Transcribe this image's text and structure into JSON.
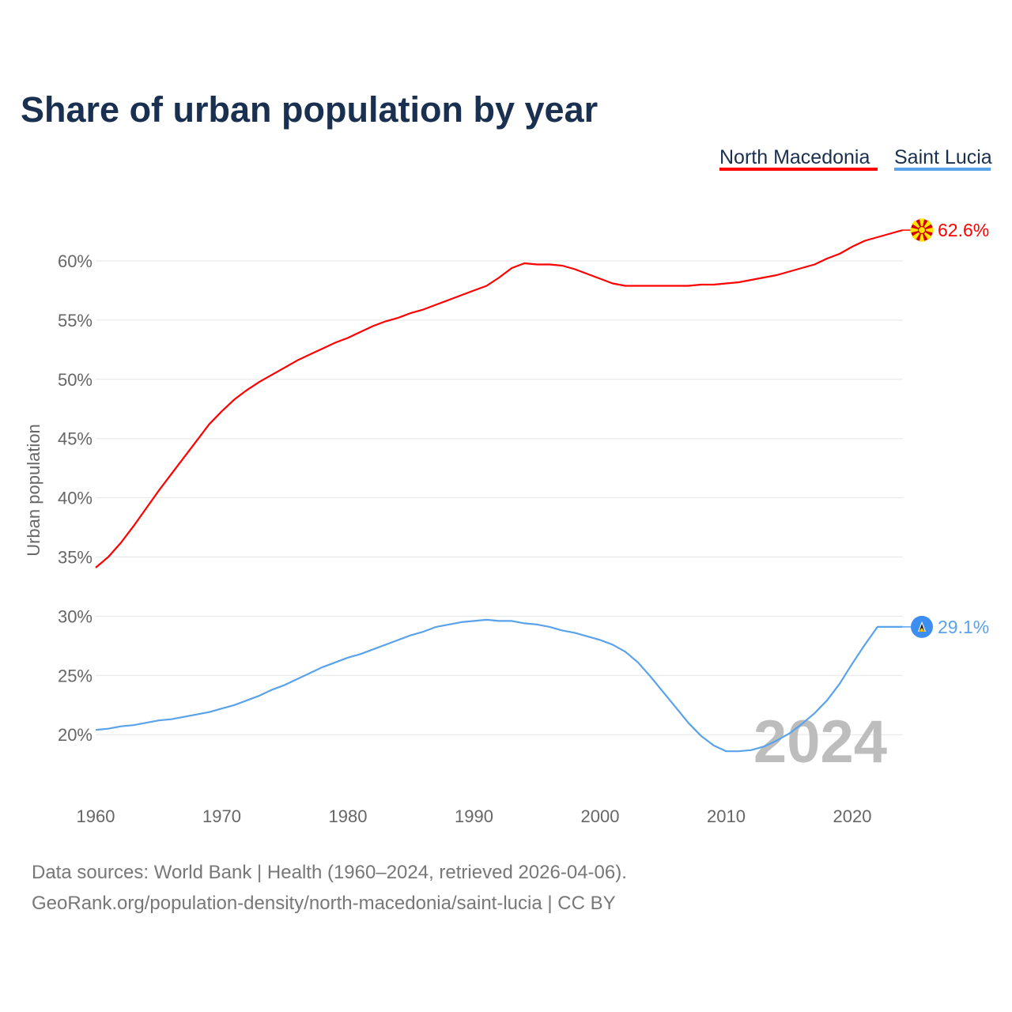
{
  "chart_data": {
    "type": "line",
    "title": "Share of urban population by year",
    "xlabel": "",
    "ylabel": "Urban population",
    "xlim": [
      1960,
      2024
    ],
    "ylim": [
      15,
      63
    ],
    "yticks": [
      20,
      25,
      30,
      35,
      40,
      45,
      50,
      55,
      60
    ],
    "ytick_labels": [
      "20%",
      "25%",
      "30%",
      "35%",
      "40%",
      "45%",
      "50%",
      "55%",
      "60%"
    ],
    "xticks": [
      1960,
      1970,
      1980,
      1990,
      2000,
      2010,
      2020
    ],
    "xtick_labels": [
      "1960",
      "1970",
      "1980",
      "1990",
      "2000",
      "2010",
      "2020"
    ],
    "grid": true,
    "legend_placement": "top-right",
    "watermark_year": "2024",
    "x": [
      1960,
      1961,
      1962,
      1963,
      1964,
      1965,
      1966,
      1967,
      1968,
      1969,
      1970,
      1971,
      1972,
      1973,
      1974,
      1975,
      1976,
      1977,
      1978,
      1979,
      1980,
      1981,
      1982,
      1983,
      1984,
      1985,
      1986,
      1987,
      1988,
      1989,
      1990,
      1991,
      1992,
      1993,
      1994,
      1995,
      1996,
      1997,
      1998,
      1999,
      2000,
      2001,
      2002,
      2003,
      2004,
      2005,
      2006,
      2007,
      2008,
      2009,
      2010,
      2011,
      2012,
      2013,
      2014,
      2015,
      2016,
      2017,
      2018,
      2019,
      2020,
      2021,
      2022,
      2023,
      2024
    ],
    "series": [
      {
        "name": "North Macedonia",
        "color": "#ff0000",
        "end_label": "62.6%",
        "flag": "north-macedonia-flag",
        "values": [
          34.1,
          35.0,
          36.2,
          37.6,
          39.1,
          40.6,
          42.0,
          43.4,
          44.8,
          46.2,
          47.3,
          48.3,
          49.1,
          49.8,
          50.4,
          51.0,
          51.6,
          52.1,
          52.6,
          53.1,
          53.5,
          54.0,
          54.5,
          54.9,
          55.2,
          55.6,
          55.9,
          56.3,
          56.7,
          57.1,
          57.5,
          57.9,
          58.6,
          59.4,
          59.8,
          59.7,
          59.7,
          59.6,
          59.3,
          58.9,
          58.5,
          58.1,
          57.9,
          57.9,
          57.9,
          57.9,
          57.9,
          57.9,
          58.0,
          58.0,
          58.1,
          58.2,
          58.4,
          58.6,
          58.8,
          59.1,
          59.4,
          59.7,
          60.2,
          60.6,
          61.2,
          61.7,
          62.0,
          62.3,
          62.6
        ]
      },
      {
        "name": "Saint Lucia",
        "color": "#5aa2ea",
        "end_label": "29.1%",
        "flag": "saint-lucia-flag",
        "values": [
          20.4,
          20.5,
          20.7,
          20.8,
          21.0,
          21.2,
          21.3,
          21.5,
          21.7,
          21.9,
          22.2,
          22.5,
          22.9,
          23.3,
          23.8,
          24.2,
          24.7,
          25.2,
          25.7,
          26.1,
          26.5,
          26.8,
          27.2,
          27.6,
          28.0,
          28.4,
          28.7,
          29.1,
          29.3,
          29.5,
          29.6,
          29.7,
          29.6,
          29.6,
          29.4,
          29.3,
          29.1,
          28.8,
          28.6,
          28.3,
          28.0,
          27.6,
          27.0,
          26.1,
          24.9,
          23.6,
          22.3,
          21.0,
          19.9,
          19.1,
          18.6,
          18.6,
          18.7,
          19.0,
          19.5,
          20.1,
          20.9,
          21.8,
          22.9,
          24.3,
          26.0,
          27.6,
          29.1,
          29.1,
          29.1
        ]
      }
    ]
  },
  "footer": {
    "line1": "Data sources: World Bank | Health (1960–2024, retrieved 2026-04-06).",
    "line2": "GeoRank.org/population-density/north-macedonia/saint-lucia | CC BY"
  }
}
